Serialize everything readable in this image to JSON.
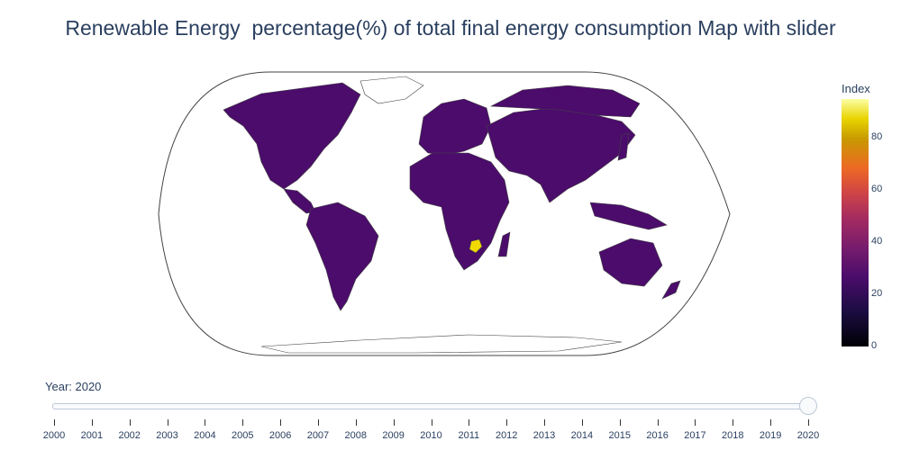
{
  "title": "Renewable Energy  percentage(%) of total final energy consumption Map with slider",
  "colorbar": {
    "title": "Index",
    "ticks": [
      "0",
      "20",
      "40",
      "60",
      "80"
    ],
    "range": [
      0,
      95
    ]
  },
  "slider": {
    "label": "Year: 2020",
    "selected": "2020",
    "years": [
      "2000",
      "2001",
      "2002",
      "2003",
      "2004",
      "2005",
      "2006",
      "2007",
      "2008",
      "2009",
      "2010",
      "2011",
      "2012",
      "2013",
      "2014",
      "2015",
      "2016",
      "2017",
      "2018",
      "2019",
      "2020"
    ]
  },
  "colors": {
    "land_value": "#4b0c6b",
    "highlight": "#f0d800",
    "outline": "#444444"
  }
}
